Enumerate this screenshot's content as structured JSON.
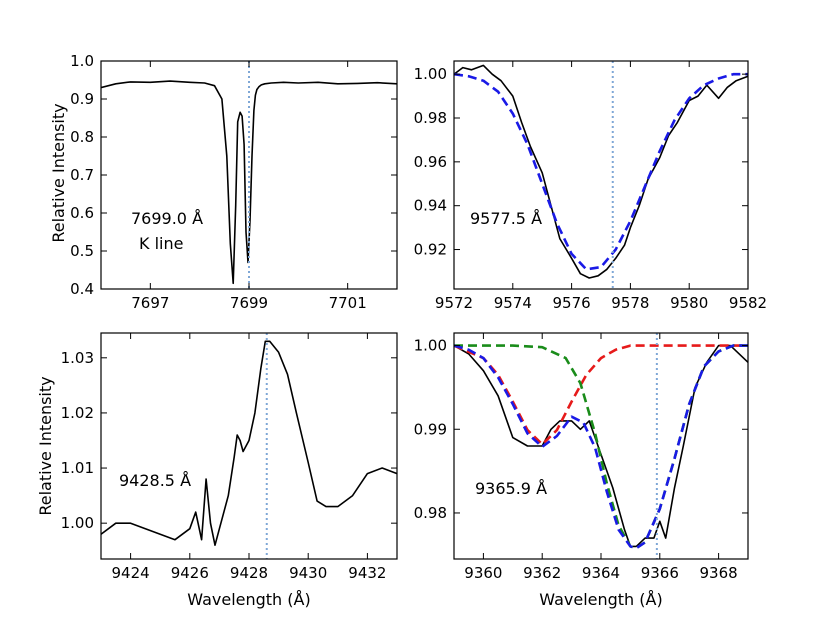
{
  "figure": {
    "ylabel_top": "Relative Intensity",
    "ylabel_bottom": "Relative Intensity",
    "xlabel_left": "Wavelength (Å)",
    "xlabel_right": "Wavelength (Å)"
  },
  "chart_data": [
    {
      "type": "line",
      "panel": "top-left",
      "annotation": [
        "7699.0 Å",
        "K line"
      ],
      "xlim": [
        7696,
        7702
      ],
      "ylim": [
        0.4,
        1.0
      ],
      "xticks": [
        7697,
        7699,
        7701
      ],
      "yticks": [
        0.4,
        0.5,
        0.6,
        0.7,
        0.8,
        0.9,
        1.0
      ],
      "ytick_labels": [
        "0.4",
        "0.5",
        "0.6",
        "0.7",
        "0.8",
        "0.9",
        "1.0"
      ],
      "vline": 7699.0,
      "series": [
        {
          "color": "#000000",
          "style": "solid",
          "x": [
            7696.0,
            7696.3,
            7696.6,
            7697.0,
            7697.4,
            7697.8,
            7698.1,
            7698.3,
            7698.45,
            7698.55,
            7698.62,
            7698.68,
            7698.73,
            7698.77,
            7698.82,
            7698.86,
            7698.9,
            7698.94,
            7698.98,
            7699.02,
            7699.06,
            7699.1,
            7699.13,
            7699.16,
            7699.2,
            7699.25,
            7699.32,
            7699.45,
            7699.7,
            7700.0,
            7700.4,
            7700.8,
            7701.2,
            7701.6,
            7702.0
          ],
          "y": [
            0.93,
            0.94,
            0.945,
            0.944,
            0.947,
            0.944,
            0.942,
            0.935,
            0.9,
            0.75,
            0.52,
            0.415,
            0.62,
            0.84,
            0.865,
            0.855,
            0.78,
            0.55,
            0.47,
            0.58,
            0.75,
            0.87,
            0.91,
            0.925,
            0.932,
            0.937,
            0.94,
            0.942,
            0.944,
            0.942,
            0.944,
            0.94,
            0.941,
            0.943,
            0.94
          ]
        }
      ]
    },
    {
      "type": "line",
      "panel": "top-right",
      "annotation": [
        "9577.5 Å"
      ],
      "xlim": [
        9572,
        9582
      ],
      "ylim": [
        0.902,
        1.006
      ],
      "xticks": [
        9572,
        9574,
        9576,
        9578,
        9580,
        9582
      ],
      "yticks": [
        0.92,
        0.94,
        0.96,
        0.98,
        1.0
      ],
      "ytick_labels": [
        "0.92",
        "0.94",
        "0.96",
        "0.98",
        "1.00"
      ],
      "vline": 9577.4,
      "series": [
        {
          "color": "#000000",
          "style": "solid",
          "x": [
            9572.0,
            9572.3,
            9572.6,
            9573.0,
            9573.3,
            9573.6,
            9574.0,
            9574.3,
            9574.6,
            9575.0,
            9575.3,
            9575.6,
            9576.0,
            9576.3,
            9576.6,
            9576.9,
            9577.2,
            9577.5,
            9577.8,
            9578.0,
            9578.3,
            9578.6,
            9579.0,
            9579.3,
            9579.6,
            9580.0,
            9580.3,
            9580.6,
            9581.0,
            9581.3,
            9581.6,
            9582.0
          ],
          "y": [
            1.0,
            1.003,
            1.002,
            1.004,
            1.0,
            0.997,
            0.99,
            0.978,
            0.967,
            0.955,
            0.94,
            0.925,
            0.916,
            0.909,
            0.907,
            0.908,
            0.911,
            0.916,
            0.922,
            0.93,
            0.94,
            0.952,
            0.962,
            0.972,
            0.978,
            0.988,
            0.99,
            0.995,
            0.989,
            0.994,
            0.997,
            0.999
          ]
        },
        {
          "color": "#1a1ae6",
          "style": "dashed",
          "x": [
            9572.0,
            9572.5,
            9573.0,
            9573.5,
            9574.0,
            9574.5,
            9575.0,
            9575.5,
            9576.0,
            9576.5,
            9577.0,
            9577.5,
            9578.0,
            9578.5,
            9579.0,
            9579.5,
            9580.0,
            9580.5,
            9581.0,
            9581.5,
            9582.0
          ],
          "y": [
            1.0,
            0.999,
            0.997,
            0.992,
            0.982,
            0.968,
            0.95,
            0.932,
            0.918,
            0.911,
            0.912,
            0.92,
            0.933,
            0.949,
            0.965,
            0.979,
            0.989,
            0.995,
            0.998,
            1.0,
            1.0
          ]
        }
      ]
    },
    {
      "type": "line",
      "panel": "bottom-left",
      "annotation": [
        "9428.5 Å"
      ],
      "xlim": [
        9423,
        9433
      ],
      "ylim": [
        0.9935,
        1.0345
      ],
      "xticks": [
        9424,
        9426,
        9428,
        9430,
        9432
      ],
      "yticks": [
        1.0,
        1.01,
        1.02,
        1.03
      ],
      "ytick_labels": [
        "1.00",
        "1.01",
        "1.02",
        "1.03"
      ],
      "vline": 9428.6,
      "series": [
        {
          "color": "#000000",
          "style": "solid",
          "x": [
            9423.0,
            9423.5,
            9424.0,
            9424.5,
            9425.0,
            9425.5,
            9426.0,
            9426.2,
            9426.4,
            9426.55,
            9426.7,
            9426.85,
            9427.0,
            9427.3,
            9427.5,
            9427.6,
            9427.7,
            9427.8,
            9428.0,
            9428.2,
            9428.4,
            9428.55,
            9428.7,
            9429.0,
            9429.3,
            9429.6,
            9430.0,
            9430.3,
            9430.6,
            9431.0,
            9431.5,
            9432.0,
            9432.5,
            9433.0
          ],
          "y": [
            0.998,
            1.0,
            1.0,
            0.999,
            0.998,
            0.997,
            0.999,
            1.002,
            0.997,
            1.008,
            1.0,
            0.996,
            0.999,
            1.005,
            1.012,
            1.016,
            1.015,
            1.013,
            1.015,
            1.02,
            1.028,
            1.033,
            1.033,
            1.031,
            1.027,
            1.02,
            1.011,
            1.004,
            1.003,
            1.003,
            1.005,
            1.009,
            1.01,
            1.009
          ]
        }
      ]
    },
    {
      "type": "line",
      "panel": "bottom-right",
      "annotation": [
        "9365.9 Å"
      ],
      "xlim": [
        9359,
        9369
      ],
      "ylim": [
        0.9745,
        1.0015
      ],
      "xticks": [
        9360,
        9362,
        9364,
        9366,
        9368
      ],
      "yticks": [
        0.98,
        0.99,
        1.0
      ],
      "ytick_labels": [
        "0.98",
        "0.99",
        "1.00"
      ],
      "vline": 9365.9,
      "series": [
        {
          "color": "#000000",
          "style": "solid",
          "x": [
            9359.0,
            9359.5,
            9360.0,
            9360.5,
            9361.0,
            9361.5,
            9362.0,
            9362.3,
            9362.6,
            9363.0,
            9363.3,
            9363.6,
            9364.0,
            9364.4,
            9364.8,
            9365.0,
            9365.2,
            9365.5,
            9365.8,
            9366.0,
            9366.2,
            9366.5,
            9366.8,
            9367.2,
            9367.6,
            9368.0,
            9368.4,
            9368.7,
            9369.0
          ],
          "y": [
            1.0,
            0.999,
            0.997,
            0.994,
            0.989,
            0.988,
            0.988,
            0.99,
            0.991,
            0.991,
            0.99,
            0.991,
            0.987,
            0.983,
            0.978,
            0.976,
            0.976,
            0.977,
            0.977,
            0.979,
            0.977,
            0.983,
            0.988,
            0.995,
            0.998,
            1.0,
            1.0,
            0.999,
            0.998
          ]
        },
        {
          "color": "#e61a1a",
          "style": "dashed",
          "x": [
            9359.0,
            9360.0,
            9360.5,
            9361.0,
            9361.5,
            9362.0,
            9362.5,
            9363.0,
            9363.5,
            9364.0,
            9364.5,
            9365.0,
            9366.0,
            9367.0,
            9368.0,
            9369.0
          ],
          "y": [
            1.0,
            0.9985,
            0.9965,
            0.9933,
            0.9899,
            0.9882,
            0.9899,
            0.9933,
            0.9965,
            0.9985,
            0.9995,
            1.0,
            1.0,
            1.0,
            1.0,
            1.0
          ]
        },
        {
          "color": "#1a8c1a",
          "style": "dashed",
          "x": [
            9359.0,
            9360.0,
            9361.0,
            9362.0,
            9362.8,
            9363.3,
            9363.8,
            9364.2,
            9364.6,
            9365.0,
            9365.2,
            9365.5,
            9366.0,
            9366.5,
            9367.0,
            9367.5,
            9368.0,
            9368.5,
            9369.0
          ],
          "y": [
            1.0,
            1.0,
            1.0,
            0.9998,
            0.9985,
            0.9955,
            0.9895,
            0.9835,
            0.9785,
            0.976,
            0.9758,
            0.9765,
            0.9805,
            0.9865,
            0.993,
            0.9975,
            0.9993,
            1.0,
            1.0
          ]
        },
        {
          "color": "#1a1ae6",
          "style": "dashed",
          "x": [
            9359.0,
            9359.5,
            9360.0,
            9360.5,
            9361.0,
            9361.5,
            9362.0,
            9362.5,
            9363.0,
            9363.4,
            9363.8,
            9364.2,
            9364.6,
            9365.0,
            9365.2,
            9365.5,
            9366.0,
            9366.5,
            9367.0,
            9367.5,
            9368.0,
            9368.5,
            9369.0
          ],
          "y": [
            1.0,
            0.9995,
            0.9985,
            0.9962,
            0.993,
            0.9895,
            0.9879,
            0.9892,
            0.9915,
            0.9908,
            0.9878,
            0.9825,
            0.978,
            0.976,
            0.9758,
            0.9765,
            0.9805,
            0.9865,
            0.993,
            0.9975,
            0.9993,
            1.0,
            1.0
          ]
        }
      ]
    }
  ]
}
